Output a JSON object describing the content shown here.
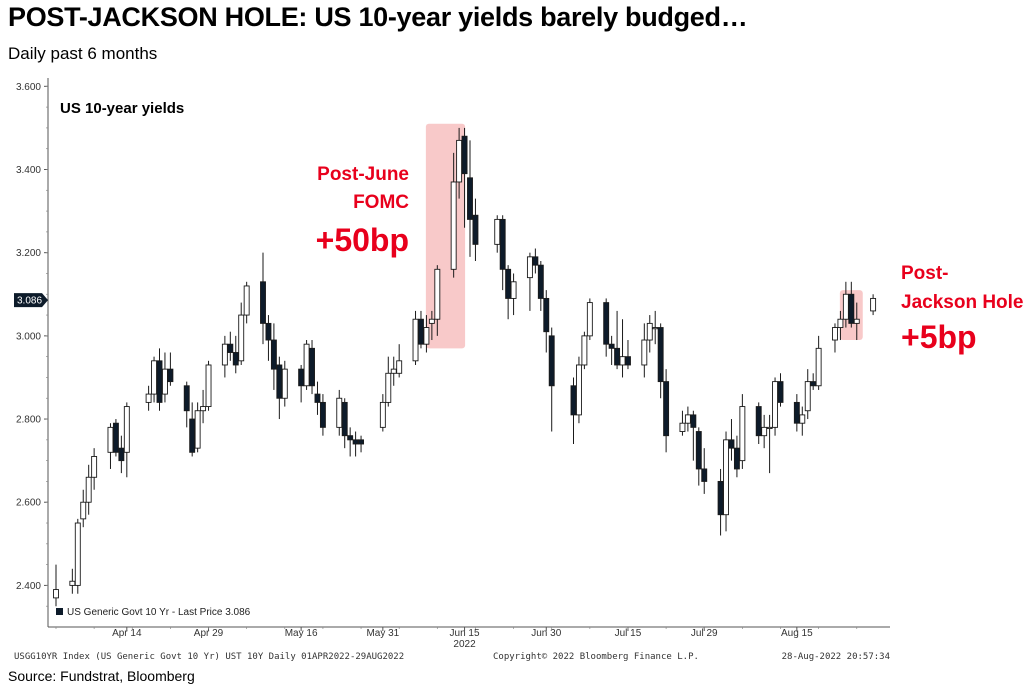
{
  "header": {
    "title": "POST-JACKSON HOLE: US 10-year yields barely budged…",
    "subtitle": "Daily past 6 months"
  },
  "footer": {
    "source": "Source: Fundstrat, Bloomberg",
    "ticker_line": "USGG10YR Index (US Generic Govt 10 Yr) UST 10Y  Daily 01APR2022-29AUG2022",
    "copyright": "Copyright© 2022 Bloomberg Finance L.P.",
    "timestamp": "28-Aug-2022 20:57:34"
  },
  "colors": {
    "accent_red": "#e8001c",
    "highlight_fill": "#f8c9c9",
    "down_candle": "#0d1b2a"
  },
  "chart_data": {
    "type": "candlestick",
    "panel_label": "US 10-year yields",
    "legend_label": "US Generic Govt 10 Yr - Last Price 3.086",
    "legend_position": "bottom-left",
    "last_price_label": "3.086",
    "last_price": 3.086,
    "ylim": [
      2.3,
      3.62
    ],
    "yticks": [
      {
        "value": 2.4,
        "label": "2.400"
      },
      {
        "value": 2.6,
        "label": "2.600"
      },
      {
        "value": 2.8,
        "label": "2.800"
      },
      {
        "value": 3.0,
        "label": "3.000"
      },
      {
        "value": 3.2,
        "label": "3.200"
      },
      {
        "value": 3.4,
        "label": "3.400"
      },
      {
        "value": 3.6,
        "label": "3.600"
      }
    ],
    "xticks": [
      {
        "date": "2022-04-14",
        "label": "Apr 14"
      },
      {
        "date": "2022-04-29",
        "label": "Apr 29"
      },
      {
        "date": "2022-05-16",
        "label": "May 16"
      },
      {
        "date": "2022-05-31",
        "label": "May 31"
      },
      {
        "date": "2022-06-15",
        "label": "Jun 15"
      },
      {
        "date": "2022-06-30",
        "label": "Jun 30"
      },
      {
        "date": "2022-07-15",
        "label": "Jul 15"
      },
      {
        "date": "2022-07-29",
        "label": "Jul 29"
      },
      {
        "date": "2022-08-15",
        "label": "Aug 15"
      }
    ],
    "year_label": "2022",
    "annotations": [
      {
        "id": "fomc",
        "lines": [
          "Post-June",
          "FOMC"
        ],
        "value_text": "+50bp",
        "date_from": "2022-06-09",
        "date_to": "2022-06-14",
        "y_from": 2.97,
        "y_to": 3.51
      },
      {
        "id": "jackson",
        "lines": [
          "Post-",
          "Jackson Hole"
        ],
        "value_text": "+5bp",
        "date_from": "2022-08-24",
        "date_to": "2022-08-26",
        "y_from": 2.99,
        "y_to": 3.11
      }
    ],
    "candles": [
      {
        "date": "2022-04-01",
        "open": 2.37,
        "high": 2.45,
        "low": 2.35,
        "close": 2.39
      },
      {
        "date": "2022-04-04",
        "open": 2.4,
        "high": 2.44,
        "low": 2.38,
        "close": 2.41
      },
      {
        "date": "2022-04-05",
        "open": 2.4,
        "high": 2.56,
        "low": 2.38,
        "close": 2.55
      },
      {
        "date": "2022-04-06",
        "open": 2.56,
        "high": 2.63,
        "low": 2.54,
        "close": 2.6
      },
      {
        "date": "2022-04-07",
        "open": 2.6,
        "high": 2.69,
        "low": 2.57,
        "close": 2.66
      },
      {
        "date": "2022-04-08",
        "open": 2.66,
        "high": 2.73,
        "low": 2.63,
        "close": 2.71
      },
      {
        "date": "2022-04-11",
        "open": 2.72,
        "high": 2.79,
        "low": 2.68,
        "close": 2.78
      },
      {
        "date": "2022-04-12",
        "open": 2.79,
        "high": 2.8,
        "low": 2.71,
        "close": 2.72
      },
      {
        "date": "2022-04-13",
        "open": 2.73,
        "high": 2.76,
        "low": 2.67,
        "close": 2.7
      },
      {
        "date": "2022-04-14",
        "open": 2.72,
        "high": 2.84,
        "low": 2.66,
        "close": 2.83
      },
      {
        "date": "2022-04-18",
        "open": 2.84,
        "high": 2.88,
        "low": 2.82,
        "close": 2.86
      },
      {
        "date": "2022-04-19",
        "open": 2.86,
        "high": 2.95,
        "low": 2.84,
        "close": 2.94
      },
      {
        "date": "2022-04-20",
        "open": 2.94,
        "high": 2.97,
        "low": 2.82,
        "close": 2.84
      },
      {
        "date": "2022-04-21",
        "open": 2.86,
        "high": 2.96,
        "low": 2.84,
        "close": 2.92
      },
      {
        "date": "2022-04-22",
        "open": 2.92,
        "high": 2.96,
        "low": 2.88,
        "close": 2.89
      },
      {
        "date": "2022-04-25",
        "open": 2.88,
        "high": 2.89,
        "low": 2.78,
        "close": 2.82
      },
      {
        "date": "2022-04-26",
        "open": 2.8,
        "high": 2.84,
        "low": 2.71,
        "close": 2.72
      },
      {
        "date": "2022-04-27",
        "open": 2.73,
        "high": 2.84,
        "low": 2.72,
        "close": 2.82
      },
      {
        "date": "2022-04-28",
        "open": 2.82,
        "high": 2.87,
        "low": 2.79,
        "close": 2.83
      },
      {
        "date": "2022-04-29",
        "open": 2.83,
        "high": 2.94,
        "low": 2.82,
        "close": 2.93
      },
      {
        "date": "2022-05-02",
        "open": 2.93,
        "high": 3.0,
        "low": 2.9,
        "close": 2.98
      },
      {
        "date": "2022-05-03",
        "open": 2.98,
        "high": 3.01,
        "low": 2.94,
        "close": 2.96
      },
      {
        "date": "2022-05-04",
        "open": 2.96,
        "high": 3.0,
        "low": 2.91,
        "close": 2.93
      },
      {
        "date": "2022-05-05",
        "open": 2.94,
        "high": 3.08,
        "low": 2.93,
        "close": 3.05
      },
      {
        "date": "2022-05-06",
        "open": 3.05,
        "high": 3.13,
        "low": 3.03,
        "close": 3.12
      },
      {
        "date": "2022-05-09",
        "open": 3.13,
        "high": 3.2,
        "low": 2.98,
        "close": 3.03
      },
      {
        "date": "2022-05-10",
        "open": 3.03,
        "high": 3.05,
        "low": 2.94,
        "close": 2.99
      },
      {
        "date": "2022-05-11",
        "open": 2.99,
        "high": 3.03,
        "low": 2.87,
        "close": 2.92
      },
      {
        "date": "2022-05-12",
        "open": 2.93,
        "high": 2.95,
        "low": 2.8,
        "close": 2.85
      },
      {
        "date": "2022-05-13",
        "open": 2.85,
        "high": 2.94,
        "low": 2.83,
        "close": 2.92
      },
      {
        "date": "2022-05-16",
        "open": 2.92,
        "high": 2.93,
        "low": 2.84,
        "close": 2.88
      },
      {
        "date": "2022-05-17",
        "open": 2.88,
        "high": 2.99,
        "low": 2.87,
        "close": 2.98
      },
      {
        "date": "2022-05-18",
        "open": 2.97,
        "high": 2.99,
        "low": 2.86,
        "close": 2.88
      },
      {
        "date": "2022-05-19",
        "open": 2.86,
        "high": 2.89,
        "low": 2.81,
        "close": 2.84
      },
      {
        "date": "2022-05-20",
        "open": 2.84,
        "high": 2.86,
        "low": 2.76,
        "close": 2.78
      },
      {
        "date": "2022-05-23",
        "open": 2.78,
        "high": 2.87,
        "low": 2.76,
        "close": 2.85
      },
      {
        "date": "2022-05-24",
        "open": 2.84,
        "high": 2.85,
        "low": 2.73,
        "close": 2.76
      },
      {
        "date": "2022-05-25",
        "open": 2.76,
        "high": 2.78,
        "low": 2.71,
        "close": 2.75
      },
      {
        "date": "2022-05-26",
        "open": 2.75,
        "high": 2.77,
        "low": 2.71,
        "close": 2.74
      },
      {
        "date": "2022-05-27",
        "open": 2.75,
        "high": 2.76,
        "low": 2.72,
        "close": 2.74
      },
      {
        "date": "2022-05-31",
        "open": 2.78,
        "high": 2.86,
        "low": 2.77,
        "close": 2.84
      },
      {
        "date": "2022-06-01",
        "open": 2.84,
        "high": 2.95,
        "low": 2.83,
        "close": 2.91
      },
      {
        "date": "2022-06-02",
        "open": 2.91,
        "high": 2.95,
        "low": 2.88,
        "close": 2.92
      },
      {
        "date": "2022-06-03",
        "open": 2.91,
        "high": 2.98,
        "low": 2.9,
        "close": 2.94
      },
      {
        "date": "2022-06-06",
        "open": 2.94,
        "high": 3.06,
        "low": 2.93,
        "close": 3.04
      },
      {
        "date": "2022-06-07",
        "open": 3.04,
        "high": 3.06,
        "low": 2.97,
        "close": 2.98
      },
      {
        "date": "2022-06-08",
        "open": 2.98,
        "high": 3.05,
        "low": 2.96,
        "close": 3.02
      },
      {
        "date": "2022-06-09",
        "open": 3.03,
        "high": 3.06,
        "low": 2.99,
        "close": 3.04
      },
      {
        "date": "2022-06-10",
        "open": 3.04,
        "high": 3.17,
        "low": 3.0,
        "close": 3.16
      },
      {
        "date": "2022-06-13",
        "open": 3.16,
        "high": 3.44,
        "low": 3.14,
        "close": 3.37
      },
      {
        "date": "2022-06-14",
        "open": 3.37,
        "high": 3.5,
        "low": 3.33,
        "close": 3.47
      },
      {
        "date": "2022-06-15",
        "open": 3.48,
        "high": 3.5,
        "low": 3.26,
        "close": 3.39
      },
      {
        "date": "2022-06-16",
        "open": 3.38,
        "high": 3.47,
        "low": 3.19,
        "close": 3.28
      },
      {
        "date": "2022-06-17",
        "open": 3.29,
        "high": 3.33,
        "low": 3.18,
        "close": 3.22
      },
      {
        "date": "2022-06-21",
        "open": 3.22,
        "high": 3.29,
        "low": 3.2,
        "close": 3.28
      },
      {
        "date": "2022-06-22",
        "open": 3.28,
        "high": 3.29,
        "low": 3.11,
        "close": 3.16
      },
      {
        "date": "2022-06-23",
        "open": 3.16,
        "high": 3.17,
        "low": 3.04,
        "close": 3.09
      },
      {
        "date": "2022-06-24",
        "open": 3.09,
        "high": 3.15,
        "low": 3.05,
        "close": 3.13
      },
      {
        "date": "2022-06-27",
        "open": 3.14,
        "high": 3.2,
        "low": 3.06,
        "close": 3.19
      },
      {
        "date": "2022-06-28",
        "open": 3.19,
        "high": 3.21,
        "low": 3.15,
        "close": 3.17
      },
      {
        "date": "2022-06-29",
        "open": 3.17,
        "high": 3.18,
        "low": 3.06,
        "close": 3.09
      },
      {
        "date": "2022-06-30",
        "open": 3.09,
        "high": 3.11,
        "low": 2.96,
        "close": 3.01
      },
      {
        "date": "2022-07-01",
        "open": 3.0,
        "high": 3.02,
        "low": 2.77,
        "close": 2.88
      },
      {
        "date": "2022-07-05",
        "open": 2.88,
        "high": 2.9,
        "low": 2.74,
        "close": 2.81
      },
      {
        "date": "2022-07-06",
        "open": 2.81,
        "high": 2.95,
        "low": 2.79,
        "close": 2.93
      },
      {
        "date": "2022-07-07",
        "open": 2.93,
        "high": 3.01,
        "low": 2.92,
        "close": 3.0
      },
      {
        "date": "2022-07-08",
        "open": 3.0,
        "high": 3.09,
        "low": 2.99,
        "close": 3.08
      },
      {
        "date": "2022-07-11",
        "open": 3.08,
        "high": 3.09,
        "low": 2.95,
        "close": 2.98
      },
      {
        "date": "2022-07-12",
        "open": 2.98,
        "high": 3.0,
        "low": 2.93,
        "close": 2.97
      },
      {
        "date": "2022-07-13",
        "open": 2.97,
        "high": 3.06,
        "low": 2.92,
        "close": 2.93
      },
      {
        "date": "2022-07-14",
        "open": 2.93,
        "high": 3.04,
        "low": 2.9,
        "close": 2.95
      },
      {
        "date": "2022-07-15",
        "open": 2.95,
        "high": 2.99,
        "low": 2.92,
        "close": 2.93
      },
      {
        "date": "2022-07-18",
        "open": 2.93,
        "high": 3.03,
        "low": 2.9,
        "close": 2.99
      },
      {
        "date": "2022-07-19",
        "open": 2.99,
        "high": 3.05,
        "low": 2.96,
        "close": 3.03
      },
      {
        "date": "2022-07-20",
        "open": 3.02,
        "high": 3.06,
        "low": 2.98,
        "close": 3.02
      },
      {
        "date": "2022-07-21",
        "open": 3.02,
        "high": 3.03,
        "low": 2.85,
        "close": 2.89
      },
      {
        "date": "2022-07-22",
        "open": 2.89,
        "high": 2.92,
        "low": 2.72,
        "close": 2.76
      },
      {
        "date": "2022-07-25",
        "open": 2.77,
        "high": 2.82,
        "low": 2.76,
        "close": 2.79
      },
      {
        "date": "2022-07-26",
        "open": 2.79,
        "high": 2.83,
        "low": 2.77,
        "close": 2.81
      },
      {
        "date": "2022-07-27",
        "open": 2.81,
        "high": 2.82,
        "low": 2.7,
        "close": 2.78
      },
      {
        "date": "2022-07-28",
        "open": 2.77,
        "high": 2.78,
        "low": 2.64,
        "close": 2.68
      },
      {
        "date": "2022-07-29",
        "open": 2.68,
        "high": 2.73,
        "low": 2.62,
        "close": 2.65
      },
      {
        "date": "2022-08-01",
        "open": 2.65,
        "high": 2.68,
        "low": 2.52,
        "close": 2.57
      },
      {
        "date": "2022-08-02",
        "open": 2.57,
        "high": 2.77,
        "low": 2.53,
        "close": 2.75
      },
      {
        "date": "2022-08-03",
        "open": 2.75,
        "high": 2.8,
        "low": 2.7,
        "close": 2.73
      },
      {
        "date": "2022-08-04",
        "open": 2.73,
        "high": 2.76,
        "low": 2.66,
        "close": 2.68
      },
      {
        "date": "2022-08-05",
        "open": 2.7,
        "high": 2.86,
        "low": 2.68,
        "close": 2.83
      },
      {
        "date": "2022-08-08",
        "open": 2.83,
        "high": 2.84,
        "low": 2.74,
        "close": 2.76
      },
      {
        "date": "2022-08-09",
        "open": 2.76,
        "high": 2.81,
        "low": 2.73,
        "close": 2.78
      },
      {
        "date": "2022-08-10",
        "open": 2.78,
        "high": 2.81,
        "low": 2.67,
        "close": 2.78
      },
      {
        "date": "2022-08-11",
        "open": 2.78,
        "high": 2.9,
        "low": 2.76,
        "close": 2.89
      },
      {
        "date": "2022-08-12",
        "open": 2.89,
        "high": 2.91,
        "low": 2.83,
        "close": 2.84
      },
      {
        "date": "2022-08-15",
        "open": 2.84,
        "high": 2.86,
        "low": 2.77,
        "close": 2.79
      },
      {
        "date": "2022-08-16",
        "open": 2.79,
        "high": 2.83,
        "low": 2.76,
        "close": 2.81
      },
      {
        "date": "2022-08-17",
        "open": 2.82,
        "high": 2.92,
        "low": 2.8,
        "close": 2.89
      },
      {
        "date": "2022-08-18",
        "open": 2.89,
        "high": 2.91,
        "low": 2.87,
        "close": 2.88
      },
      {
        "date": "2022-08-19",
        "open": 2.88,
        "high": 3.0,
        "low": 2.87,
        "close": 2.97
      },
      {
        "date": "2022-08-22",
        "open": 2.99,
        "high": 3.03,
        "low": 2.96,
        "close": 3.02
      },
      {
        "date": "2022-08-23",
        "open": 3.02,
        "high": 3.06,
        "low": 2.99,
        "close": 3.04
      },
      {
        "date": "2022-08-24",
        "open": 3.04,
        "high": 3.13,
        "low": 3.02,
        "close": 3.1
      },
      {
        "date": "2022-08-25",
        "open": 3.1,
        "high": 3.13,
        "low": 3.02,
        "close": 3.03
      },
      {
        "date": "2022-08-26",
        "open": 3.03,
        "high": 3.08,
        "low": 2.99,
        "close": 3.04
      },
      {
        "date": "2022-08-29",
        "open": 3.06,
        "high": 3.1,
        "low": 3.05,
        "close": 3.09
      }
    ]
  }
}
